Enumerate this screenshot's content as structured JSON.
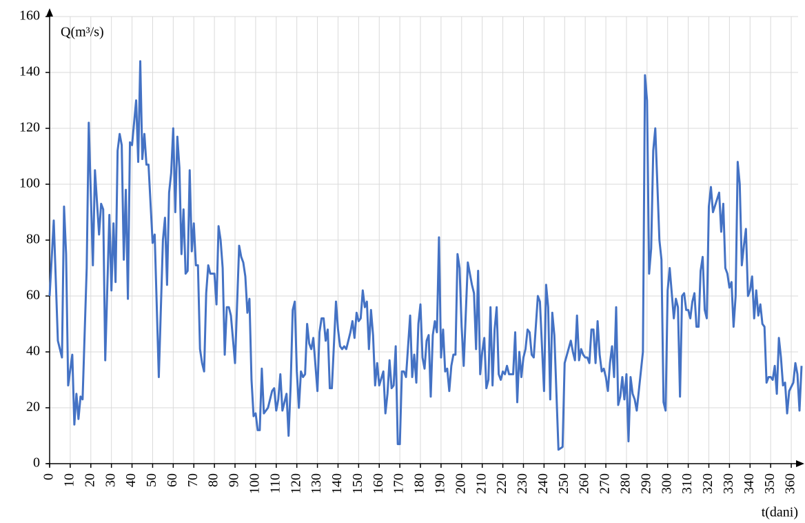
{
  "chart_data": {
    "type": "line",
    "y_label": "Q(m³/s)",
    "x_label": "t(dani)",
    "xlim": [
      0,
      365
    ],
    "ylim": [
      0,
      160
    ],
    "xticks": [
      0,
      10,
      20,
      30,
      40,
      50,
      60,
      70,
      80,
      90,
      100,
      110,
      120,
      130,
      140,
      150,
      160,
      170,
      180,
      190,
      200,
      210,
      220,
      230,
      240,
      250,
      260,
      270,
      280,
      290,
      300,
      310,
      320,
      330,
      340,
      350,
      360
    ],
    "yticks": [
      0,
      20,
      40,
      60,
      80,
      100,
      120,
      140,
      160
    ],
    "grid": true,
    "x": [
      0,
      2,
      4,
      6,
      7,
      8,
      9,
      11,
      12,
      13,
      14,
      15,
      16,
      18,
      19,
      21,
      22,
      24,
      25,
      26,
      27,
      29,
      30,
      31,
      32,
      33,
      34,
      35,
      36,
      37,
      38,
      39,
      40,
      42,
      43,
      44,
      45,
      46,
      47,
      48,
      50,
      51,
      53,
      55,
      56,
      57,
      58,
      59,
      60,
      61,
      62,
      63,
      64,
      65,
      66,
      67,
      68,
      69,
      70,
      71,
      72,
      73,
      74,
      75,
      76,
      77,
      78,
      80,
      81,
      82,
      83,
      84,
      85,
      86,
      87,
      88,
      90,
      92,
      93,
      94,
      95,
      96,
      97,
      98,
      99,
      100,
      101,
      102,
      103,
      104,
      106,
      108,
      109,
      110,
      111,
      112,
      113,
      115,
      116,
      117,
      118,
      119,
      120,
      121,
      122,
      123,
      124,
      125,
      126,
      127,
      128,
      130,
      131,
      132,
      133,
      134,
      135,
      136,
      137,
      139,
      140,
      141,
      142,
      143,
      144,
      146,
      147,
      148,
      149,
      150,
      151,
      152,
      153,
      154,
      155,
      156,
      157,
      158,
      159,
      160,
      162,
      163,
      164,
      165,
      166,
      167,
      168,
      169,
      170,
      171,
      172,
      173,
      175,
      176,
      177,
      178,
      179,
      180,
      181,
      182,
      183,
      184,
      185,
      186,
      187,
      188,
      189,
      190,
      191,
      192,
      193,
      194,
      195,
      196,
      197,
      198,
      199,
      200,
      201,
      203,
      204,
      205,
      206,
      207,
      208,
      209,
      210,
      211,
      212,
      213,
      214,
      215,
      216,
      217,
      218,
      219,
      220,
      221,
      222,
      223,
      225,
      226,
      227,
      228,
      229,
      230,
      231,
      232,
      233,
      234,
      235,
      237,
      238,
      239,
      240,
      241,
      242,
      243,
      244,
      245,
      247,
      249,
      250,
      253,
      254,
      255,
      256,
      257,
      258,
      259,
      260,
      261,
      262,
      263,
      264,
      265,
      266,
      267,
      268,
      269,
      270,
      271,
      272,
      273,
      274,
      275,
      276,
      277,
      278,
      279,
      280,
      281,
      282,
      283,
      284,
      285,
      288,
      289,
      290,
      291,
      292,
      293,
      294,
      295,
      296,
      297,
      298,
      299,
      300,
      301,
      302,
      303,
      304,
      305,
      306,
      307,
      308,
      309,
      310,
      311,
      312,
      313,
      314,
      315,
      316,
      317,
      318,
      319,
      320,
      321,
      322,
      325,
      326,
      327,
      328,
      329,
      330,
      331,
      332,
      333,
      334,
      335,
      336,
      337,
      338,
      339,
      340,
      341,
      342,
      343,
      344,
      345,
      346,
      347,
      348,
      349,
      350,
      351,
      352,
      353,
      354,
      355,
      356,
      357,
      358,
      359,
      361,
      362,
      363,
      364,
      365
    ],
    "series": [
      {
        "color": "#4472c4",
        "values": [
          60,
          87,
          44,
          38,
          92,
          75,
          28,
          39,
          14,
          25,
          16,
          24,
          23,
          70,
          122,
          71,
          105,
          82,
          93,
          91,
          37,
          89,
          62,
          86,
          65,
          112,
          118,
          114,
          73,
          98,
          59,
          115,
          114,
          130,
          108,
          144,
          109,
          118,
          107,
          107,
          79,
          82,
          31,
          80,
          88,
          64,
          97,
          104,
          120,
          90,
          117,
          106,
          75,
          91,
          68,
          69,
          105,
          76,
          86,
          71,
          71,
          41,
          36,
          33,
          61,
          71,
          68,
          68,
          57,
          85,
          80,
          70,
          39,
          56,
          56,
          53,
          36,
          78,
          74,
          72,
          67,
          54,
          59,
          30,
          17,
          18,
          12,
          12,
          34,
          18,
          20,
          26,
          27,
          19,
          23,
          32,
          19,
          25,
          10,
          28,
          55,
          58,
          33,
          20,
          33,
          31,
          32,
          50,
          43,
          41,
          45,
          26,
          47,
          52,
          52,
          44,
          48,
          27,
          27,
          58,
          48,
          42,
          41,
          42,
          41,
          47,
          51,
          45,
          54,
          51,
          52,
          62,
          56,
          58,
          41,
          55,
          46,
          28,
          36,
          28,
          33,
          18,
          25,
          37,
          27,
          28,
          42,
          7,
          7,
          33,
          33,
          31,
          53,
          31,
          39,
          29,
          50,
          57,
          38,
          34,
          44,
          46,
          24,
          46,
          51,
          47,
          81,
          38,
          48,
          33,
          34,
          26,
          35,
          39,
          39,
          75,
          70,
          49,
          35,
          72,
          68,
          64,
          61,
          41,
          69,
          32,
          40,
          45,
          27,
          30,
          56,
          28,
          48,
          56,
          32,
          30,
          33,
          32,
          35,
          32,
          32,
          47,
          22,
          40,
          31,
          38,
          41,
          48,
          47,
          39,
          38,
          60,
          58,
          42,
          26,
          64,
          56,
          23,
          54,
          46,
          5,
          6,
          36,
          44,
          40,
          37,
          53,
          37,
          41,
          39,
          38,
          38,
          36,
          48,
          48,
          36,
          51,
          39,
          33,
          34,
          31,
          26,
          36,
          42,
          31,
          56,
          21,
          24,
          31,
          23,
          32,
          8,
          31,
          25,
          23,
          19,
          40,
          139,
          130,
          68,
          77,
          112,
          120,
          100,
          80,
          73,
          22,
          19,
          62,
          70,
          61,
          52,
          59,
          56,
          24,
          60,
          61,
          55,
          55,
          52,
          58,
          61,
          49,
          49,
          69,
          74,
          55,
          52,
          92,
          99,
          90,
          97,
          83,
          93,
          70,
          68,
          63,
          65,
          49,
          60,
          108,
          100,
          71,
          78,
          84,
          60,
          62,
          67,
          52,
          62,
          53,
          57,
          50,
          49,
          29,
          31,
          31,
          30,
          35,
          25,
          45,
          38,
          28,
          29,
          18,
          26,
          29,
          36,
          32,
          19,
          35
        ]
      }
    ]
  }
}
